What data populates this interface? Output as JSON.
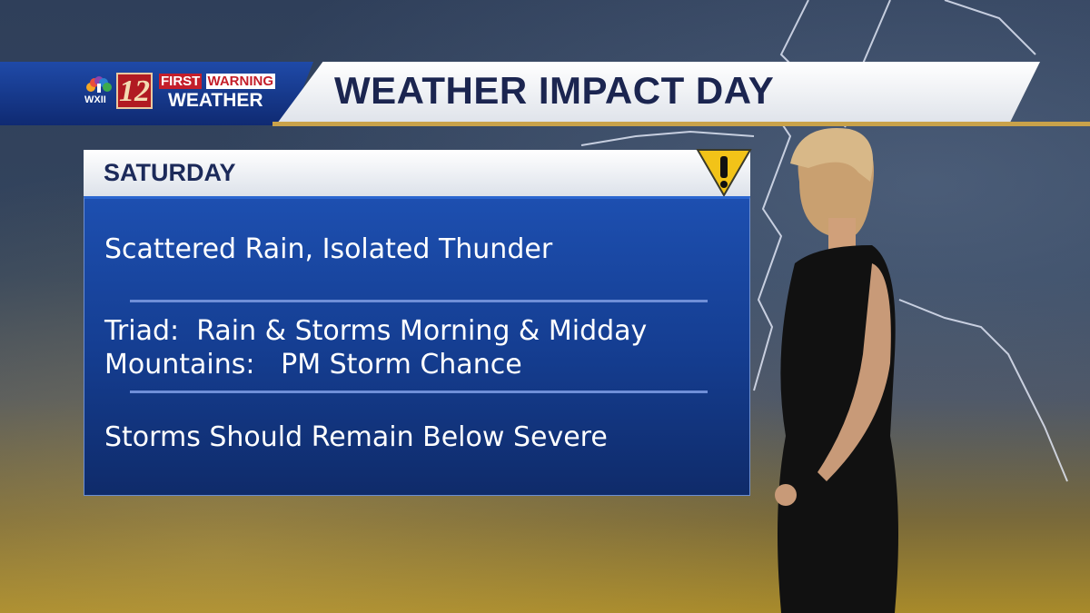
{
  "header": {
    "station_call": "WXII",
    "channel_number": "12",
    "brand_line1a": "FIRST",
    "brand_line1b": "WARNING",
    "brand_line2": "WEATHER",
    "title": "WEATHER IMPACT DAY"
  },
  "panel": {
    "day": "SATURDAY",
    "warning_icon": "warning-triangle-icon",
    "lines": [
      "Scattered Rain, Isolated Thunder",
      "Triad:  Rain & Storms Morning & Midday",
      "Mountains:   PM Storm Chance",
      "Storms Should Remain Below Severe"
    ]
  },
  "colors": {
    "brand_blue": "#1f4aa8",
    "brand_red": "#c41e2a",
    "accent_gold": "#c9a24a",
    "panel_blue": "#1d4fb0",
    "warning_yellow": "#f2c318"
  }
}
